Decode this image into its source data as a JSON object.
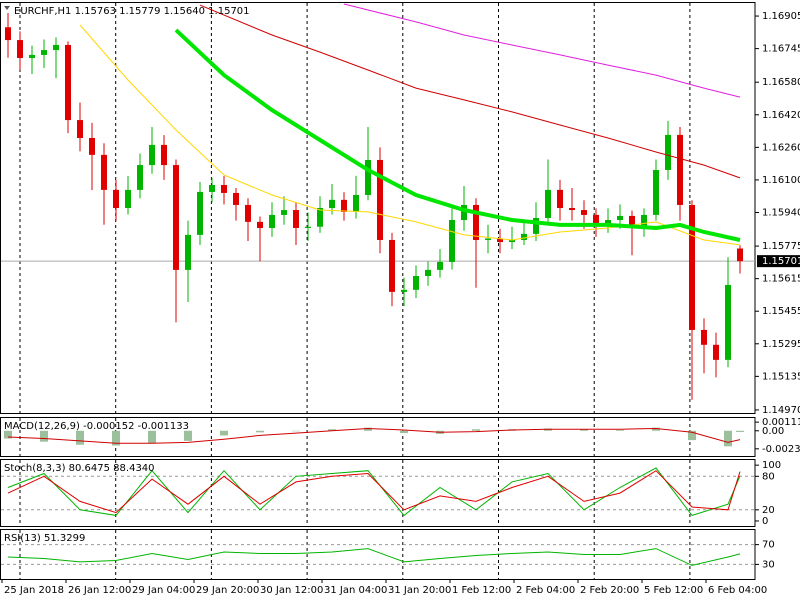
{
  "chart_data": [
    {
      "type": "candlestick",
      "title": "EURCHF,H1  1.15763 1.15779 1.15640 1.15701",
      "colors": {
        "up": "#00b400",
        "down": "#e00000"
      },
      "candles": [
        [
          1.1685,
          1.1692,
          1.167,
          1.16787
        ],
        [
          1.16787,
          1.1683,
          1.1664,
          1.16699
        ],
        [
          1.16699,
          1.1676,
          1.1662,
          1.16714
        ],
        [
          1.16714,
          1.1679,
          1.1665,
          1.16738
        ],
        [
          1.16738,
          1.168,
          1.166,
          1.16763
        ],
        [
          1.16763,
          1.1678,
          1.1633,
          1.16394
        ],
        [
          1.16394,
          1.1648,
          1.1624,
          1.16306
        ],
        [
          1.16306,
          1.1638,
          1.1605,
          1.16223
        ],
        [
          1.16223,
          1.1628,
          1.1588,
          1.16051
        ],
        [
          1.16051,
          1.161,
          1.159,
          1.15962
        ],
        [
          1.15962,
          1.1612,
          1.1593,
          1.16051
        ],
        [
          1.16051,
          1.1623,
          1.1601,
          1.16173
        ],
        [
          1.16173,
          1.1636,
          1.1613,
          1.16272
        ],
        [
          1.16272,
          1.1632,
          1.161,
          1.16173
        ],
        [
          1.16173,
          1.162,
          1.154,
          1.15658
        ],
        [
          1.15658,
          1.159,
          1.155,
          1.1583
        ],
        [
          1.1583,
          1.1609,
          1.1578,
          1.16041
        ],
        [
          1.16041,
          1.1611,
          1.1599,
          1.16075
        ],
        [
          1.16075,
          1.1612,
          1.1598,
          1.16036
        ],
        [
          1.16036,
          1.1606,
          1.159,
          1.15977
        ],
        [
          1.15977,
          1.1601,
          1.158,
          1.15894
        ],
        [
          1.15894,
          1.1592,
          1.157,
          1.15864
        ],
        [
          1.15864,
          1.1599,
          1.1582,
          1.15928
        ],
        [
          1.15928,
          1.1602,
          1.1588,
          1.15952
        ],
        [
          1.15952,
          1.1599,
          1.1578,
          1.15864
        ],
        [
          1.15864,
          1.1594,
          1.158,
          1.1587
        ],
        [
          1.1587,
          1.1602,
          1.1584,
          1.15962
        ],
        [
          1.15962,
          1.1608,
          1.1593,
          1.16002
        ],
        [
          1.16002,
          1.1604,
          1.159,
          1.15943
        ],
        [
          1.15943,
          1.1612,
          1.1591,
          1.16026
        ],
        [
          1.16026,
          1.1636,
          1.16,
          1.16198
        ],
        [
          1.16198,
          1.1626,
          1.1574,
          1.15805
        ],
        [
          1.15805,
          1.1584,
          1.1548,
          1.1555
        ],
        [
          1.1555,
          1.1562,
          1.1548,
          1.1556
        ],
        [
          1.1556,
          1.1568,
          1.1552,
          1.15628
        ],
        [
          1.15628,
          1.157,
          1.1558,
          1.15658
        ],
        [
          1.15658,
          1.1576,
          1.1562,
          1.15697
        ],
        [
          1.15697,
          1.1596,
          1.1566,
          1.15903
        ],
        [
          1.15903,
          1.1607,
          1.1585,
          1.15977
        ],
        [
          1.15977,
          1.1601,
          1.1557,
          1.15805
        ],
        [
          1.15805,
          1.1588,
          1.1574,
          1.15812
        ],
        [
          1.15812,
          1.1586,
          1.1574,
          1.15795
        ],
        [
          1.15795,
          1.1587,
          1.1576,
          1.15805
        ],
        [
          1.15805,
          1.159,
          1.1578,
          1.15835
        ],
        [
          1.15835,
          1.1599,
          1.158,
          1.15913
        ],
        [
          1.15913,
          1.162,
          1.1588,
          1.16051
        ],
        [
          1.16051,
          1.161,
          1.159,
          1.15962
        ],
        [
          1.15962,
          1.1606,
          1.159,
          1.15952
        ],
        [
          1.15952,
          1.16,
          1.1586,
          1.15928
        ],
        [
          1.15928,
          1.1596,
          1.1582,
          1.15874
        ],
        [
          1.15874,
          1.1596,
          1.1584,
          1.15903
        ],
        [
          1.15903,
          1.1598,
          1.1586,
          1.15923
        ],
        [
          1.15923,
          1.1595,
          1.1573,
          1.15864
        ],
        [
          1.15864,
          1.1596,
          1.1582,
          1.15928
        ],
        [
          1.15928,
          1.162,
          1.159,
          1.16149
        ],
        [
          1.16149,
          1.1639,
          1.161,
          1.16321
        ],
        [
          1.16321,
          1.1636,
          1.159,
          1.15977
        ],
        [
          1.15977,
          1.16,
          1.1502,
          1.15363
        ],
        [
          1.15363,
          1.1542,
          1.1515,
          1.1529
        ],
        [
          1.1529,
          1.1535,
          1.1513,
          1.15216
        ],
        [
          1.15216,
          1.1572,
          1.1518,
          1.15584
        ],
        [
          1.15763,
          1.15779,
          1.1564,
          1.15701
        ]
      ],
      "lines": [
        {
          "color": "#ffd700",
          "thick": false,
          "x": [
            6,
            10,
            14,
            18,
            22,
            26,
            30,
            34,
            38,
            42,
            46,
            50,
            54,
            58,
            61
          ],
          "values": [
            1.16861,
            1.16591,
            1.16345,
            1.16124,
            1.16026,
            1.15952,
            1.15943,
            1.15894,
            1.1583,
            1.15805,
            1.15844,
            1.15864,
            1.15894,
            1.15805,
            1.15781
          ]
        },
        {
          "color": "#00e600",
          "thick": true,
          "x": [
            14,
            18,
            22,
            26,
            30,
            34,
            38,
            42,
            46,
            50,
            54,
            56,
            58,
            61
          ],
          "values": [
            1.16836,
            1.16615,
            1.16443,
            1.16296,
            1.16149,
            1.16026,
            1.15952,
            1.15903,
            1.15879,
            1.15879,
            1.15864,
            1.15879,
            1.15844,
            1.15805
          ]
        },
        {
          "color": "#d00000",
          "thick": false,
          "x": [
            16,
            22,
            26,
            30,
            34,
            38,
            42,
            46,
            50,
            54,
            58,
            61
          ],
          "values": [
            1.16959,
            1.16812,
            1.16728,
            1.1664,
            1.16551,
            1.16493,
            1.16434,
            1.1637,
            1.16306,
            1.16237,
            1.16173,
            1.1611
          ]
        },
        {
          "color": "#e020e0",
          "thick": false,
          "x": [
            28,
            34,
            38,
            42,
            46,
            50,
            54,
            58,
            61
          ],
          "values": [
            1.16964,
            1.16876,
            1.16812,
            1.16763,
            1.16714,
            1.16664,
            1.16615,
            1.16551,
            1.16507
          ]
        }
      ],
      "current_price": 1.15701,
      "ylim": [
        1.14955,
        1.16974
      ],
      "yticks": [
        1.16905,
        1.16745,
        {
          "value": 1.1658,
          "label": "1.16580"
        },
        {
          "value": 1.1642,
          "label": "1.16420"
        },
        {
          "value": 1.1626,
          "label": "1.16260"
        },
        {
          "value": 1.161,
          "label": "1.16100"
        },
        {
          "value": 1.1594,
          "label": "1.15940"
        },
        1.15775,
        1.15615,
        1.15455,
        1.15295,
        1.15135,
        {
          "value": 1.1497,
          "label": "1.14970"
        }
      ]
    },
    {
      "type": "macd",
      "title": "MACD(12,26,9) -0.000152 -0.001133",
      "x": [
        0,
        3,
        6,
        9,
        12,
        15,
        18,
        21,
        24,
        27,
        30,
        33,
        36,
        39,
        42,
        45,
        48,
        51,
        54,
        57,
        60,
        61
      ],
      "histogram": {
        "color": "#9cbf9c",
        "values": [
          -0.001,
          -0.0014,
          -0.0018,
          -0.0019,
          -0.0016,
          -0.0013,
          -0.0006,
          -0.0002,
          0.0,
          0.0002,
          0.0004,
          -0.0003,
          -0.0004,
          0.0002,
          0.0002,
          0.0003,
          0.0002,
          0.0001,
          0.0004,
          -0.0012,
          -0.002,
          -0.000152
        ]
      },
      "signal": {
        "color": "#d00000",
        "values": [
          -0.0008,
          -0.001,
          -0.0013,
          -0.0016,
          -0.0016,
          -0.0015,
          -0.0011,
          -0.0006,
          -0.0003,
          0.0,
          0.0003,
          0.0001,
          -0.0002,
          -0.0001,
          0.0001,
          0.0002,
          0.0002,
          0.0002,
          0.0003,
          -0.0002,
          -0.0015,
          -0.001133
        ]
      },
      "ylim": [
        -0.003248,
        0.001775
      ],
      "yticks": [
        0.001114,
        {
          "value": 0,
          "label": "0.00"
        },
        -0.002323
      ]
    },
    {
      "type": "line",
      "title": "Stoch(8,3,3) 80.6475 88.4340",
      "x": [
        0,
        3,
        6,
        9,
        12,
        15,
        18,
        21,
        24,
        27,
        30,
        33,
        36,
        39,
        42,
        45,
        48,
        51,
        54,
        57,
        60,
        61
      ],
      "series": [
        {
          "color": "#00b400",
          "values": [
            60,
            85,
            20,
            10,
            90,
            15,
            90,
            20,
            80,
            85,
            90,
            10,
            60,
            20,
            70,
            85,
            20,
            60,
            95,
            10,
            30,
            80.6475
          ]
        },
        {
          "color": "#e00000",
          "values": [
            50,
            80,
            35,
            15,
            75,
            30,
            80,
            30,
            70,
            80,
            85,
            20,
            45,
            35,
            60,
            80,
            35,
            50,
            90,
            25,
            20,
            88.434
          ]
        }
      ],
      "levels": [
        80,
        20
      ],
      "ylim": [
        -9,
        111
      ],
      "yticks": [
        100,
        80,
        20,
        0
      ]
    },
    {
      "type": "line",
      "title": "RSI(13) 51.3299",
      "x": [
        0,
        3,
        6,
        9,
        12,
        15,
        18,
        21,
        24,
        27,
        30,
        33,
        36,
        39,
        42,
        45,
        48,
        51,
        54,
        57,
        60,
        61
      ],
      "series": [
        {
          "color": "#00b400",
          "values": [
            45,
            42,
            35,
            38,
            52,
            40,
            55,
            52,
            52,
            55,
            62,
            35,
            42,
            48,
            52,
            55,
            50,
            50,
            62,
            28,
            45,
            51.3299
          ]
        }
      ],
      "levels": [
        70,
        30
      ],
      "ylim": [
        0.5,
        101.6
      ],
      "yticks": [
        70,
        30
      ],
      "xticks": [
        {
          "value": 0,
          "label": "25 Jan 2018"
        },
        {
          "value": 5.333,
          "label": "26 Jan 12:00"
        },
        {
          "value": 10.667,
          "label": "29 Jan 04:00"
        },
        {
          "value": 16,
          "label": "29 Jan 20:00"
        },
        {
          "value": 21.333,
          "label": "30 Jan 12:00"
        },
        {
          "value": 26.667,
          "label": "31 Jan 04:00"
        },
        {
          "value": 32,
          "label": "31 Jan 20:00"
        },
        {
          "value": 37.333,
          "label": "1 Feb 12:00"
        },
        {
          "value": 42.667,
          "label": "2 Feb 04:00"
        },
        {
          "value": 48,
          "label": "2 Feb 20:00"
        },
        {
          "value": 53.333,
          "label": "5 Feb 12:00"
        },
        {
          "value": 58.667,
          "label": "6 Feb 04:00"
        }
      ]
    }
  ]
}
